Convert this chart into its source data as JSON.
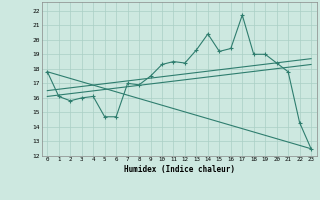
{
  "xlabel": "Humidex (Indice chaleur)",
  "bg_color": "#cde8e0",
  "grid_color": "#aacfc5",
  "line_color": "#2e7d6e",
  "xlim": [
    -0.5,
    23.5
  ],
  "ylim": [
    12,
    22.6
  ],
  "xticks": [
    0,
    1,
    2,
    3,
    4,
    5,
    6,
    7,
    8,
    9,
    10,
    11,
    12,
    13,
    14,
    15,
    16,
    17,
    18,
    19,
    20,
    21,
    22,
    23
  ],
  "yticks": [
    12,
    13,
    14,
    15,
    16,
    17,
    18,
    19,
    20,
    21,
    22
  ],
  "line1_x": [
    0,
    1,
    2,
    3,
    4,
    5,
    6,
    7,
    8,
    9,
    10,
    11,
    12,
    13,
    14,
    15,
    16,
    17,
    18,
    19,
    20,
    21,
    22,
    23
  ],
  "line1_y": [
    17.8,
    16.1,
    15.8,
    16.0,
    16.1,
    14.7,
    14.7,
    17.0,
    16.9,
    17.5,
    18.3,
    18.5,
    18.4,
    19.3,
    20.4,
    19.2,
    19.4,
    21.7,
    19.0,
    19.0,
    18.4,
    17.8,
    14.3,
    12.5
  ],
  "line2_x": [
    0,
    23
  ],
  "line2_y": [
    16.1,
    18.3
  ],
  "line3_x": [
    0,
    23
  ],
  "line3_y": [
    16.5,
    18.7
  ],
  "line4_x": [
    0,
    23
  ],
  "line4_y": [
    17.8,
    12.5
  ]
}
